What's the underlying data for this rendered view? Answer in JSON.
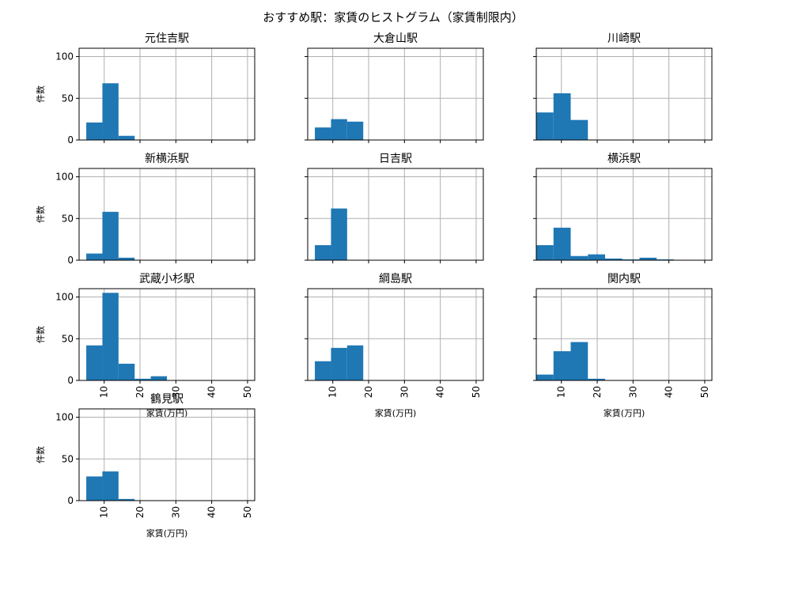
{
  "figure_title": "おすすめ駅：家賃のヒストグラム（家賃制限内）",
  "colors": {
    "bar": "#1f77b4",
    "grid": "#b0b0b0",
    "axis": "#000000"
  },
  "chart_data": {
    "type": "bar",
    "suptitle": "おすすめ駅：家賃のヒストグラム（家賃制限内）",
    "xlabel": "家賃(万円)",
    "ylabel": "件数",
    "xlim": [
      3,
      52
    ],
    "ylim": [
      0,
      110
    ],
    "xticks": [
      10,
      20,
      30,
      40,
      50
    ],
    "yticks": [
      0,
      50,
      100
    ],
    "grid": true,
    "subplots": [
      {
        "name": "元住吉駅",
        "bins": [
          [
            5,
            9.5,
            21
          ],
          [
            9.5,
            14,
            68
          ],
          [
            14,
            18.5,
            5
          ]
        ]
      },
      {
        "name": "大倉山駅",
        "bins": [
          [
            5,
            9.5,
            15
          ],
          [
            9.5,
            14,
            25
          ],
          [
            14,
            18.5,
            22
          ]
        ]
      },
      {
        "name": "川崎駅",
        "bins": [
          [
            3,
            7.8,
            33
          ],
          [
            7.8,
            12.6,
            56
          ],
          [
            12.6,
            17.4,
            24
          ]
        ]
      },
      {
        "name": "新横浜駅",
        "bins": [
          [
            5,
            9.5,
            8
          ],
          [
            9.5,
            14,
            58
          ],
          [
            14,
            18.5,
            3
          ]
        ]
      },
      {
        "name": "日吉駅",
        "bins": [
          [
            5,
            9.5,
            18
          ],
          [
            9.5,
            14,
            62
          ]
        ]
      },
      {
        "name": "横浜駅",
        "bins": [
          [
            3,
            7.8,
            18
          ],
          [
            7.8,
            12.6,
            39
          ],
          [
            12.6,
            17.4,
            5
          ],
          [
            17.4,
            22.2,
            7
          ],
          [
            22.2,
            27,
            2
          ],
          [
            27,
            31.8,
            1
          ],
          [
            31.8,
            36.6,
            3
          ],
          [
            36.6,
            41.4,
            1
          ]
        ]
      },
      {
        "name": "武蔵小杉駅",
        "bins": [
          [
            5,
            9.5,
            42
          ],
          [
            9.5,
            14,
            105
          ],
          [
            14,
            18.5,
            20
          ],
          [
            18.5,
            23,
            2
          ],
          [
            23,
            27.5,
            5
          ]
        ]
      },
      {
        "name": "綱島駅",
        "bins": [
          [
            5,
            9.5,
            23
          ],
          [
            9.5,
            14,
            39
          ],
          [
            14,
            18.5,
            42
          ]
        ]
      },
      {
        "name": "関内駅",
        "bins": [
          [
            3,
            7.8,
            7
          ],
          [
            7.8,
            12.6,
            35
          ],
          [
            12.6,
            17.4,
            46
          ],
          [
            17.4,
            22.2,
            2
          ]
        ]
      },
      {
        "name": "鶴見駅",
        "bins": [
          [
            5,
            9.5,
            29
          ],
          [
            9.5,
            14,
            35
          ],
          [
            14,
            18.5,
            2
          ]
        ]
      }
    ]
  }
}
